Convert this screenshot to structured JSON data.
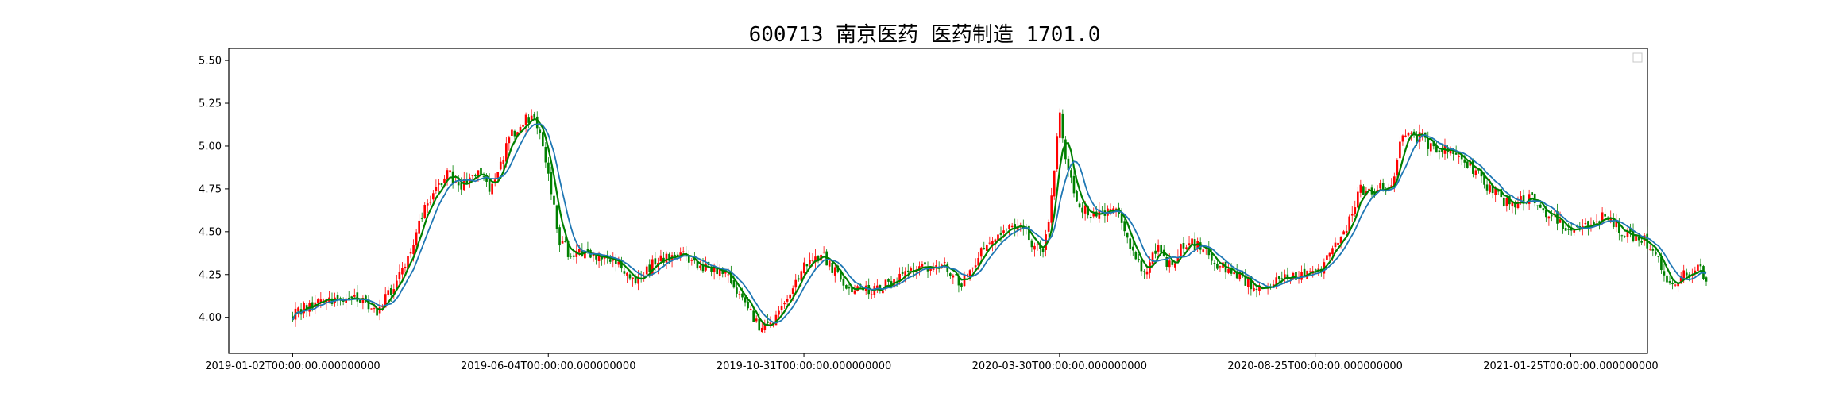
{
  "chart_data": {
    "type": "candlestick",
    "title": "600713 南京医药 医药制造 1701.0",
    "xlabel": "",
    "ylabel": "",
    "ylim": [
      3.79,
      5.57
    ],
    "grid": false,
    "legend": "top-right",
    "y_ticks": [
      {
        "value": 4.0,
        "label": "4.00"
      },
      {
        "value": 4.25,
        "label": "4.25"
      },
      {
        "value": 4.5,
        "label": "4.50"
      },
      {
        "value": 4.75,
        "label": "4.75"
      },
      {
        "value": 5.0,
        "label": "5.00"
      },
      {
        "value": 5.25,
        "label": "5.25"
      },
      {
        "value": 5.5,
        "label": "5.50"
      }
    ],
    "x_ticks": [
      "2019-01-02T00:00:00.000000000",
      "2019-06-04T00:00:00.000000000",
      "2019-10-31T00:00:00.000000000",
      "2020-03-30T00:00:00.000000000",
      "2020-08-25T00:00:00.000000000",
      "2021-01-25T00:00:00.000000000"
    ],
    "x_tick_index": [
      0,
      100,
      200,
      300,
      400,
      500
    ],
    "x_range": [
      -25,
      530
    ],
    "n_bars": 504,
    "up_color": "#ff0000",
    "down_color": "#008000",
    "ma_color": "#1f77b4",
    "anchors": [
      [
        0,
        4.02
      ],
      [
        10,
        4.11
      ],
      [
        20,
        4.1
      ],
      [
        28,
        4.1
      ],
      [
        32,
        4.02
      ],
      [
        38,
        4.15
      ],
      [
        45,
        4.35
      ],
      [
        52,
        4.65
      ],
      [
        60,
        4.85
      ],
      [
        66,
        4.78
      ],
      [
        72,
        4.85
      ],
      [
        78,
        4.75
      ],
      [
        85,
        5.05
      ],
      [
        92,
        5.17
      ],
      [
        96,
        5.12
      ],
      [
        100,
        4.85
      ],
      [
        104,
        4.45
      ],
      [
        108,
        4.38
      ],
      [
        115,
        4.38
      ],
      [
        125,
        4.35
      ],
      [
        132,
        4.2
      ],
      [
        140,
        4.3
      ],
      [
        150,
        4.38
      ],
      [
        160,
        4.3
      ],
      [
        170,
        4.25
      ],
      [
        176,
        4.1
      ],
      [
        182,
        3.95
      ],
      [
        188,
        3.97
      ],
      [
        193,
        4.1
      ],
      [
        200,
        4.3
      ],
      [
        207,
        4.38
      ],
      [
        215,
        4.2
      ],
      [
        225,
        4.15
      ],
      [
        235,
        4.2
      ],
      [
        245,
        4.3
      ],
      [
        255,
        4.3
      ],
      [
        262,
        4.2
      ],
      [
        270,
        4.4
      ],
      [
        278,
        4.5
      ],
      [
        285,
        4.55
      ],
      [
        290,
        4.4
      ],
      [
        294,
        4.4
      ],
      [
        297,
        4.7
      ],
      [
        300,
        5.18
      ],
      [
        303,
        4.85
      ],
      [
        308,
        4.65
      ],
      [
        315,
        4.6
      ],
      [
        322,
        4.65
      ],
      [
        328,
        4.4
      ],
      [
        333,
        4.25
      ],
      [
        338,
        4.4
      ],
      [
        343,
        4.3
      ],
      [
        350,
        4.45
      ],
      [
        356,
        4.4
      ],
      [
        362,
        4.3
      ],
      [
        370,
        4.25
      ],
      [
        378,
        4.15
      ],
      [
        385,
        4.22
      ],
      [
        395,
        4.25
      ],
      [
        403,
        4.3
      ],
      [
        410,
        4.45
      ],
      [
        418,
        4.75
      ],
      [
        425,
        4.75
      ],
      [
        430,
        4.78
      ],
      [
        434,
        5.05
      ],
      [
        442,
        5.05
      ],
      [
        446,
        4.98
      ],
      [
        452,
        5.0
      ],
      [
        460,
        4.9
      ],
      [
        468,
        4.75
      ],
      [
        476,
        4.65
      ],
      [
        484,
        4.7
      ],
      [
        492,
        4.6
      ],
      [
        500,
        4.5
      ],
      [
        508,
        4.55
      ],
      [
        515,
        4.6
      ],
      [
        520,
        4.48
      ],
      [
        527,
        4.47
      ],
      [
        532,
        4.4
      ],
      [
        538,
        4.2
      ],
      [
        545,
        4.25
      ],
      [
        550,
        4.3
      ],
      [
        553,
        4.2
      ]
    ]
  }
}
